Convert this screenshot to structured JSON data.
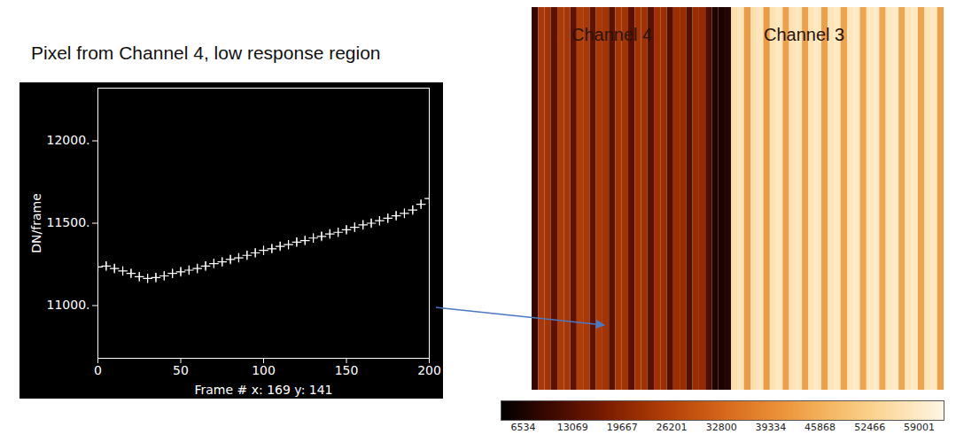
{
  "chart_data": [
    {
      "type": "scatter",
      "title": "Pixel from Channel 4, low response region",
      "xlabel": "Frame # x: 169 y: 141",
      "ylabel": "DN/frame",
      "x": [
        0,
        5,
        10,
        15,
        20,
        25,
        30,
        35,
        40,
        45,
        50,
        55,
        60,
        65,
        70,
        75,
        80,
        85,
        90,
        95,
        100,
        105,
        110,
        115,
        120,
        125,
        130,
        135,
        140,
        145,
        150,
        155,
        160,
        165,
        170,
        175,
        180,
        185,
        190,
        195,
        200
      ],
      "values": [
        11235,
        11240,
        11225,
        11210,
        11195,
        11175,
        11165,
        11170,
        11180,
        11195,
        11205,
        11215,
        11225,
        11240,
        11255,
        11265,
        11280,
        11290,
        11305,
        11320,
        11335,
        11345,
        11360,
        11370,
        11385,
        11395,
        11410,
        11420,
        11435,
        11445,
        11460,
        11475,
        11490,
        11500,
        11515,
        11530,
        11545,
        11560,
        11580,
        11615,
        11650
      ],
      "errors": [
        25,
        25,
        25,
        25,
        25,
        25,
        25,
        25,
        25,
        25,
        25,
        25,
        25,
        25,
        25,
        25,
        25,
        25,
        25,
        25,
        25,
        25,
        25,
        25,
        25,
        25,
        25,
        25,
        25,
        25,
        25,
        25,
        25,
        25,
        25,
        25,
        25,
        25,
        25,
        25,
        25
      ],
      "color": "#ffffff",
      "marker": "plus",
      "xlim": [
        0,
        200
      ],
      "xticks": [
        0,
        50,
        100,
        150,
        200
      ],
      "ylim": [
        10680,
        12320
      ],
      "yticks": [
        {
          "value": 11000,
          "label": "11000."
        },
        {
          "value": 11500,
          "label": "11500."
        },
        {
          "value": 12000,
          "label": "12000."
        }
      ],
      "grid": false
    },
    {
      "type": "heatmap",
      "labels": [
        "Channel 4",
        "Channel 3"
      ],
      "cells": [
        9000,
        24000,
        23000,
        14000,
        24500,
        23500,
        14000,
        25000,
        24000,
        14500,
        24000,
        23000,
        14000,
        23500,
        23000,
        13500,
        23000,
        22500,
        13500,
        22500,
        22000,
        13000,
        22000,
        21500,
        13000,
        21500,
        21000,
        12500,
        7000,
        6534,
        8000,
        56000,
        57000,
        42000,
        56500,
        57500,
        42000,
        57000,
        58000,
        43000,
        57000,
        58000,
        43000,
        57500,
        58500,
        43000,
        57500,
        58500,
        43500,
        58000,
        59000,
        43500,
        58000,
        59000,
        44000,
        58000,
        59001,
        44000,
        57500,
        58500,
        43500,
        57000,
        58000,
        43000
      ],
      "colorbar": {
        "range": [
          3600,
          62300
        ],
        "ticks": [
          6534,
          13069,
          19667,
          26201,
          32800,
          39334,
          45868,
          52466,
          59001
        ]
      }
    }
  ]
}
